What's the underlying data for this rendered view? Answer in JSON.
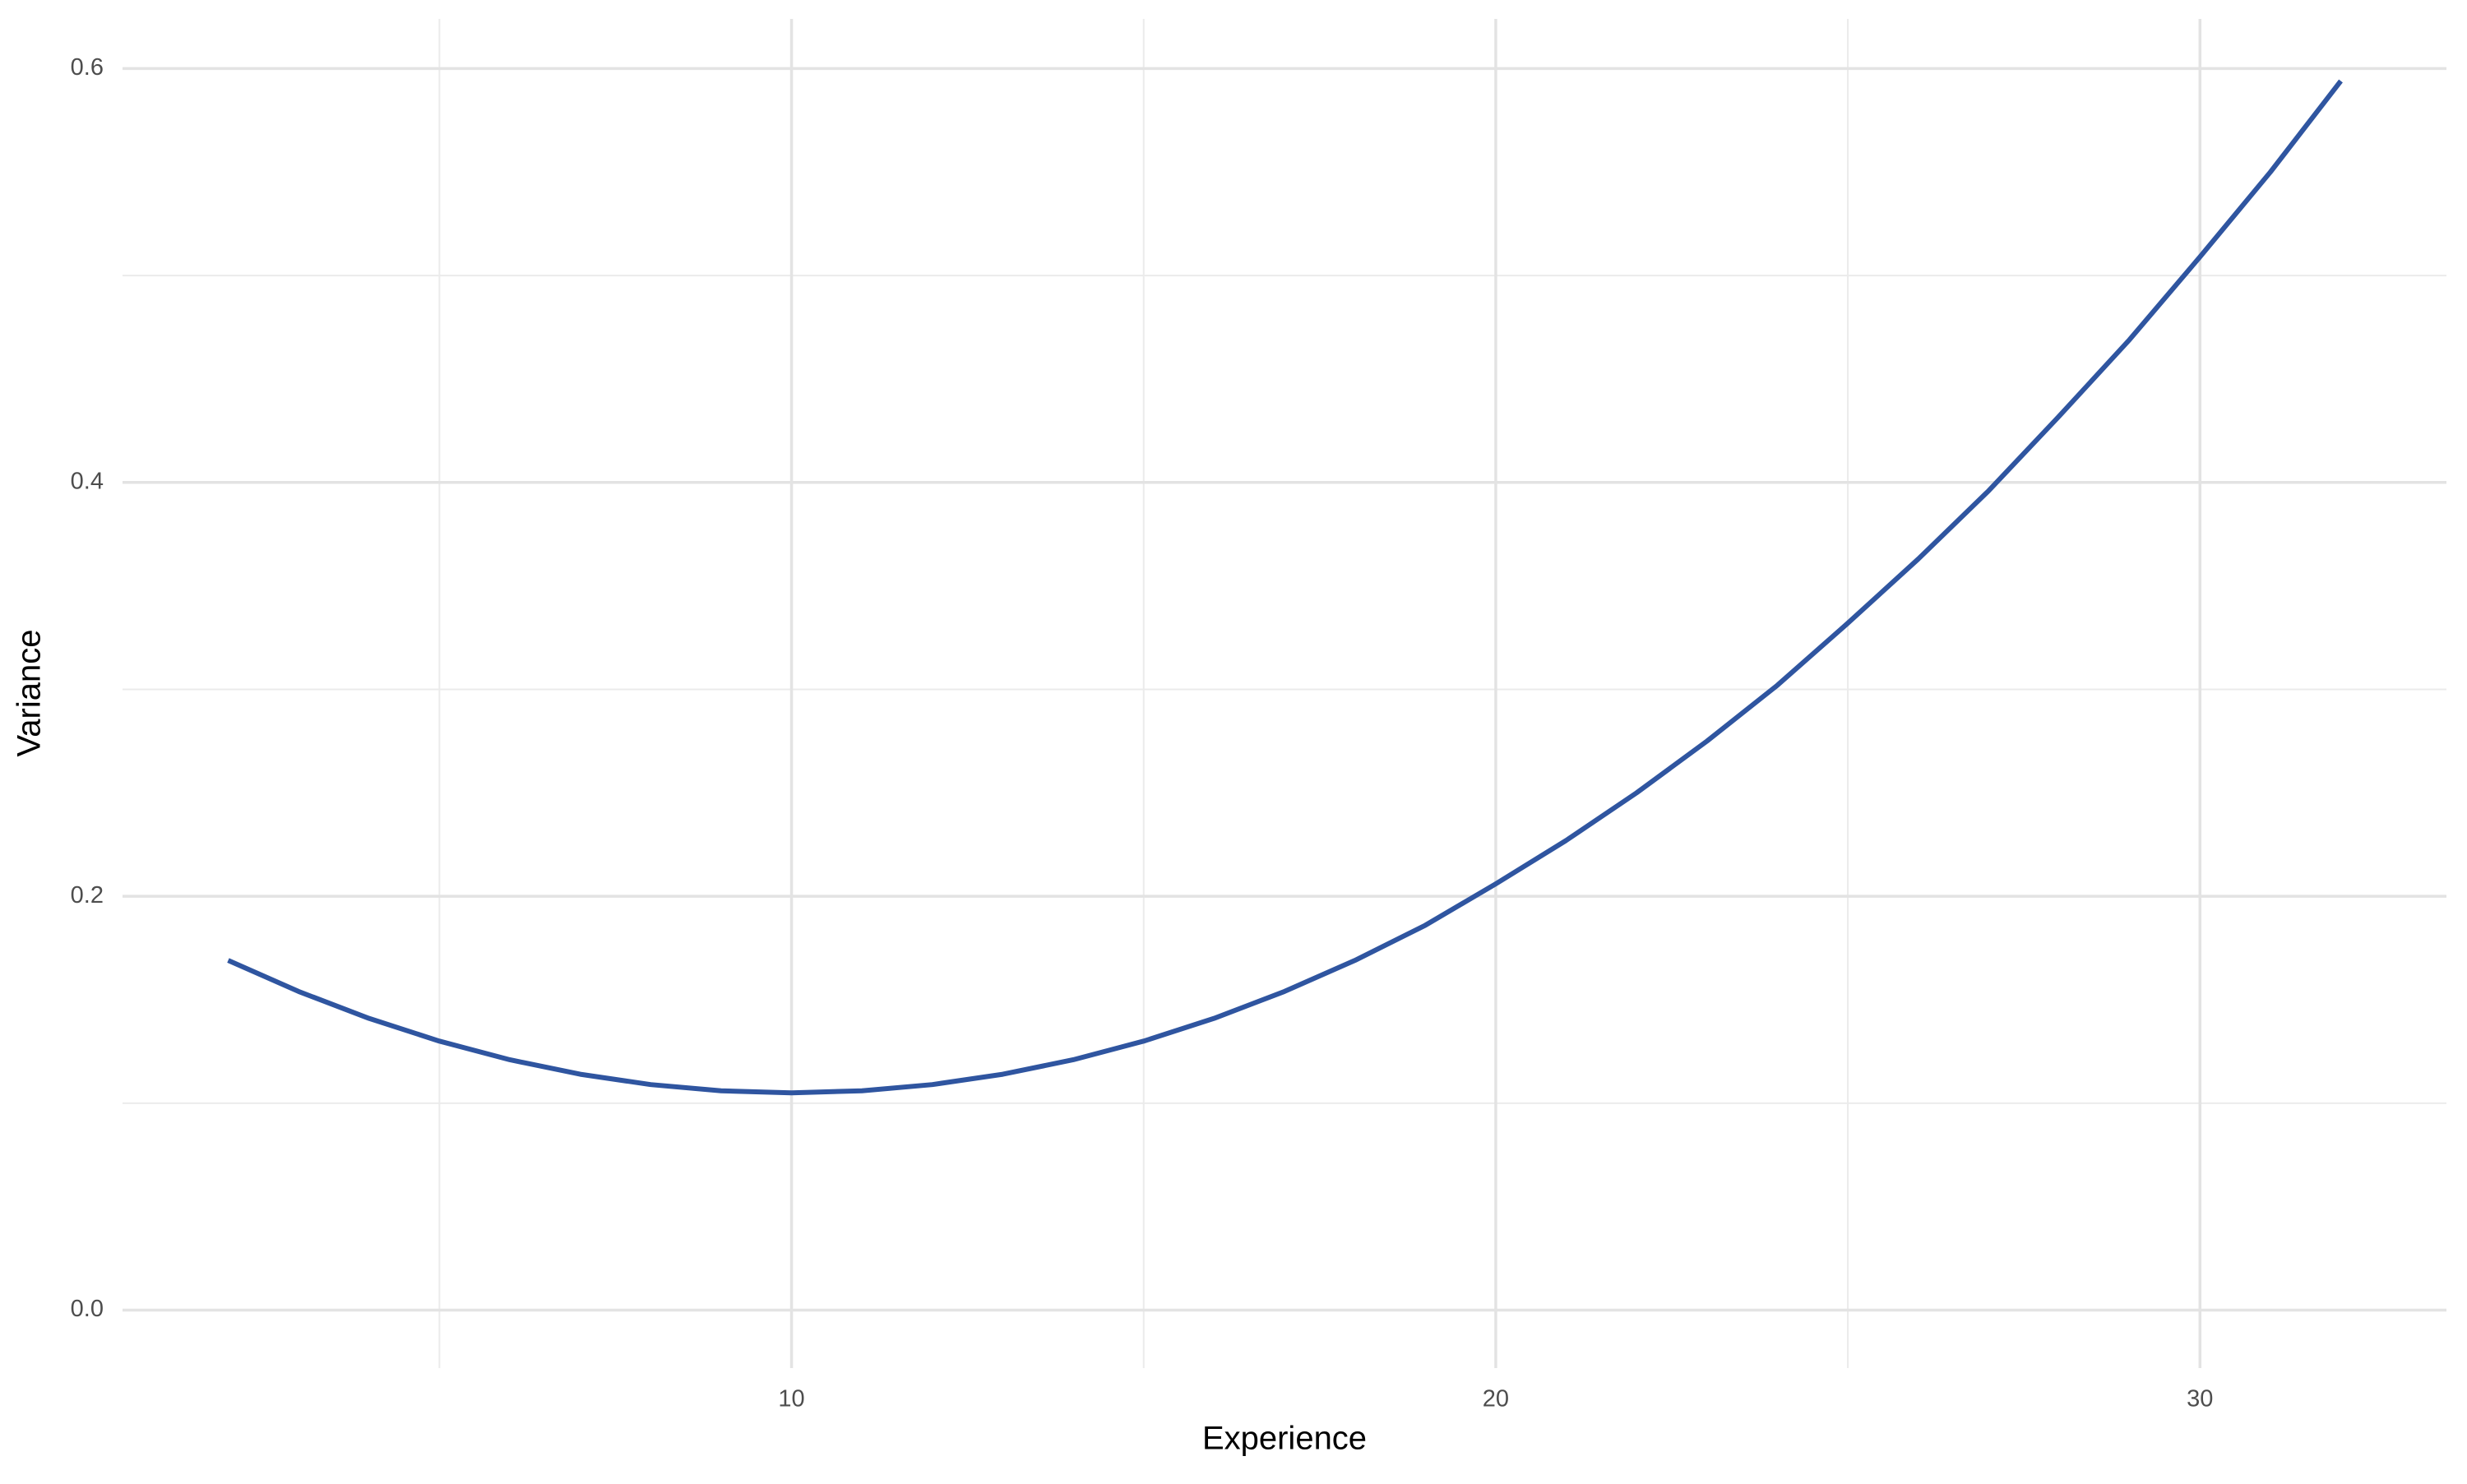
{
  "chart_data": {
    "type": "line",
    "x_label": "Experience",
    "y_label": "Variance",
    "x": [
      2,
      3,
      4,
      5,
      6,
      7,
      8,
      9,
      10,
      11,
      12,
      13,
      14,
      15,
      16,
      17,
      18,
      19,
      20,
      21,
      22,
      23,
      24,
      25,
      26,
      27,
      28,
      29,
      30,
      31,
      32
    ],
    "series": [
      {
        "color": "#2f55a0",
        "values": [
          0.169,
          0.154,
          0.141,
          0.13,
          0.121,
          0.114,
          0.109,
          0.106,
          0.105,
          0.106,
          0.109,
          0.114,
          0.121,
          0.13,
          0.141,
          0.154,
          0.169,
          0.186,
          0.206,
          0.227,
          0.25,
          0.275,
          0.302,
          0.332,
          0.363,
          0.396,
          0.432,
          0.469,
          0.509,
          0.55,
          0.594
        ]
      }
    ],
    "xlim": [
      0.5,
      33.5
    ],
    "xticks": [
      10,
      20,
      30
    ],
    "x_minor_ticks": [
      5,
      15,
      25
    ],
    "ylim": [
      -0.028,
      0.624
    ],
    "yticks": [
      {
        "value": 0,
        "label": "0.0"
      },
      0.2,
      0.4,
      0.6
    ],
    "y_minor_ticks": [
      0.1,
      0.3,
      0.5
    ],
    "grid": true
  }
}
